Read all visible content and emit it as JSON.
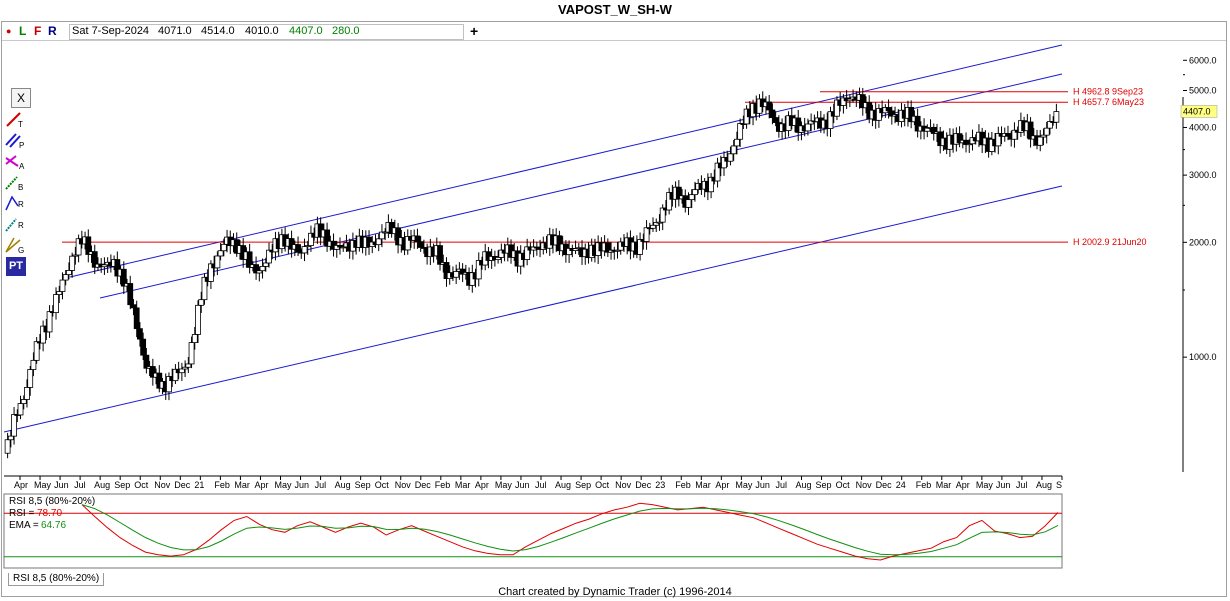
{
  "title": "VAPOST_W_SH-W",
  "toolbar": {
    "dot": "●",
    "letters": [
      "L",
      "F",
      "R"
    ],
    "date": "Sat 7-Sep-2024",
    "open": "4071.0",
    "high": "4514.0",
    "low": "4010.0",
    "close": "4407.0",
    "change": "280.0",
    "add": "+"
  },
  "tools": [
    "X",
    "T",
    "P",
    "A",
    "B",
    "R",
    "R",
    "G",
    "PT"
  ],
  "colors": {
    "up": "#ffffff",
    "down": "#000000",
    "channel": "#1a1ad0",
    "hline": "#e00000",
    "rsi": "#e00000",
    "ema": "#129012",
    "price_badge": "#ffff80"
  },
  "chart_data": [
    {
      "type": "candlestick",
      "scale": "log",
      "ylim": [
        500,
        6700
      ],
      "y_ticks": [
        "6000.0",
        "5000.0",
        "4000.0",
        "3000.0",
        "2000.0",
        "1000.0"
      ],
      "x_ticks": [
        "Apr",
        "May",
        "Jun",
        "Jul",
        "Aug",
        "Sep",
        "Oct",
        "Nov",
        "Dec",
        "21",
        "Feb",
        "Mar",
        "Apr",
        "May",
        "Jun",
        "Jul",
        "Aug",
        "Sep",
        "Oct",
        "Nov",
        "Dec",
        "Feb",
        "Mar",
        "Apr",
        "May",
        "Jun",
        "Jul",
        "Aug",
        "Sep",
        "Oct",
        "Nov",
        "Dec",
        "23",
        "Feb",
        "Mar",
        "Apr",
        "May",
        "Jun",
        "Jul",
        "Aug",
        "Sep",
        "Oct",
        "Nov",
        "Dec",
        "24",
        "Feb",
        "Mar",
        "Apr",
        "May",
        "Jun",
        "Jul",
        "Aug",
        "S"
      ],
      "last_price": "4407.0",
      "horizontal_lines": [
        {
          "label": "H 4962.8 9Sep23",
          "value": 4962.8
        },
        {
          "label": "H 4657.7 6May23",
          "value": 4657.7
        },
        {
          "label": "H 2002.9 21Jun20",
          "value": 2002.9
        }
      ],
      "close_path": [
        [
          0,
          560
        ],
        [
          6,
          700
        ],
        [
          12,
          820
        ],
        [
          17,
          980
        ],
        [
          22,
          1150
        ],
        [
          27,
          1300
        ],
        [
          32,
          1430
        ],
        [
          37,
          1650
        ],
        [
          42,
          1900
        ],
        [
          47,
          2000
        ],
        [
          52,
          1900
        ],
        [
          57,
          1750
        ],
        [
          62,
          1700
        ],
        [
          67,
          1780
        ],
        [
          72,
          1650
        ],
        [
          77,
          1380
        ],
        [
          82,
          1180
        ],
        [
          87,
          950
        ],
        [
          92,
          870
        ],
        [
          97,
          850
        ],
        [
          102,
          880
        ],
        [
          107,
          900
        ],
        [
          112,
          960
        ],
        [
          117,
          1180
        ],
        [
          122,
          1500
        ],
        [
          127,
          1750
        ],
        [
          132,
          1850
        ],
        [
          137,
          2000
        ],
        [
          142,
          2020
        ],
        [
          147,
          1850
        ],
        [
          152,
          1700
        ],
        [
          157,
          1720
        ],
        [
          162,
          1800
        ],
        [
          167,
          1960
        ],
        [
          172,
          2100
        ],
        [
          177,
          1930
        ],
        [
          182,
          1850
        ],
        [
          187,
          2050
        ],
        [
          192,
          2120
        ],
        [
          197,
          2080
        ],
        [
          202,
          2000
        ],
        [
          207,
          1900
        ],
        [
          212,
          1950
        ],
        [
          217,
          2050
        ],
        [
          222,
          1950
        ],
        [
          227,
          1980
        ],
        [
          232,
          2120
        ],
        [
          237,
          2150
        ],
        [
          242,
          2100
        ],
        [
          247,
          2000
        ],
        [
          252,
          2020
        ],
        [
          257,
          1980
        ],
        [
          262,
          1900
        ],
        [
          267,
          1850
        ],
        [
          272,
          1700
        ],
        [
          277,
          1650
        ],
        [
          282,
          1650
        ],
        [
          287,
          1620
        ],
        [
          292,
          1700
        ],
        [
          297,
          1800
        ],
        [
          302,
          1850
        ],
        [
          307,
          1880
        ],
        [
          312,
          1870
        ],
        [
          317,
          1840
        ],
        [
          322,
          1870
        ],
        [
          327,
          1900
        ],
        [
          332,
          2000
        ],
        [
          337,
          2010
        ],
        [
          342,
          1960
        ],
        [
          347,
          1950
        ],
        [
          352,
          1900
        ],
        [
          357,
          1850
        ],
        [
          362,
          1950
        ],
        [
          367,
          1900
        ],
        [
          372,
          1920
        ],
        [
          377,
          1940
        ],
        [
          382,
          1950
        ],
        [
          387,
          1960
        ],
        [
          392,
          1980
        ],
        [
          397,
          2100
        ],
        [
          402,
          2220
        ],
        [
          407,
          2450
        ],
        [
          412,
          2600
        ],
        [
          417,
          2700
        ],
        [
          422,
          2550
        ],
        [
          427,
          2700
        ],
        [
          432,
          2850
        ],
        [
          437,
          2900
        ],
        [
          442,
          3100
        ],
        [
          447,
          3350
        ],
        [
          452,
          3700
        ],
        [
          457,
          4100
        ],
        [
          462,
          4550
        ],
        [
          467,
          4650
        ],
        [
          472,
          4450
        ],
        [
          477,
          4150
        ],
        [
          482,
          4000
        ],
        [
          487,
          4100
        ],
        [
          492,
          4050
        ],
        [
          497,
          4050
        ],
        [
          502,
          4100
        ],
        [
          507,
          4150
        ],
        [
          512,
          4300
        ],
        [
          517,
          4600
        ],
        [
          522,
          4900
        ],
        [
          527,
          4750
        ],
        [
          532,
          4500
        ],
        [
          537,
          4400
        ],
        [
          542,
          4350
        ],
        [
          547,
          4380
        ],
        [
          552,
          4350
        ],
        [
          557,
          4300
        ],
        [
          562,
          4200
        ],
        [
          567,
          4050
        ],
        [
          572,
          3900
        ],
        [
          577,
          3800
        ],
        [
          582,
          3700
        ],
        [
          587,
          3650
        ],
        [
          592,
          3700
        ],
        [
          597,
          3720
        ],
        [
          602,
          3700
        ],
        [
          607,
          3650
        ],
        [
          612,
          3700
        ],
        [
          617,
          3750
        ],
        [
          622,
          3800
        ],
        [
          627,
          4050
        ],
        [
          632,
          3950
        ],
        [
          637,
          3750
        ],
        [
          642,
          3800
        ],
        [
          647,
          4000
        ],
        [
          652,
          4407
        ]
      ]
    },
    {
      "type": "line",
      "title": "RSI 8,5 (80%-20%)",
      "ylim": [
        0,
        100
      ],
      "bands": [
        80,
        20
      ],
      "series": [
        {
          "name": "RSI",
          "last": "78.70"
        },
        {
          "name": "EMA",
          "last": "64.76"
        }
      ],
      "rsi_values": [
        90,
        72,
        55,
        40,
        28,
        18,
        14,
        12,
        14,
        22,
        36,
        52,
        66,
        72,
        60,
        52,
        48,
        58,
        64,
        56,
        48,
        56,
        62,
        56,
        44,
        52,
        58,
        50,
        42,
        34,
        26,
        20,
        16,
        14,
        14,
        26,
        36,
        46,
        54,
        62,
        68,
        76,
        82,
        86,
        92,
        90,
        86,
        82,
        84,
        86,
        82,
        78,
        74,
        70,
        62,
        54,
        46,
        38,
        30,
        24,
        18,
        12,
        8,
        6,
        12,
        16,
        20,
        24,
        34,
        40,
        58,
        66,
        50,
        46,
        40,
        42,
        58,
        78
      ]
    }
  ],
  "rsi_tab": "RSI 8,5 (80%-20%)",
  "footer": "Chart created by Dynamic Trader  (c) 1996-2014"
}
